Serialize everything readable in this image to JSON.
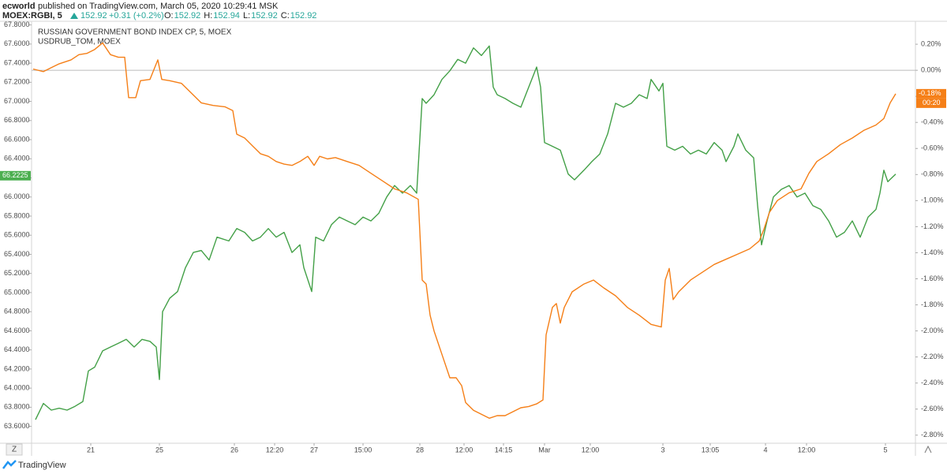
{
  "chart_data": {
    "type": "line",
    "header": {
      "author": "ecworld",
      "published": "published on TradingView.com, March 05, 2020 10:29:41 MSK",
      "symbol": "MOEX:RGBI, 5",
      "price": "152.92",
      "change": "+0.31 (+0.2%)",
      "ohlc": [
        {
          "label": "O:",
          "value": "152.92"
        },
        {
          "label": "H:",
          "value": "152.94"
        },
        {
          "label": "L:",
          "value": "152.92"
        },
        {
          "label": "C:",
          "value": "152.92"
        }
      ]
    },
    "legend_labels": [
      "RUSSIAN GOVERNMENT BOND INDEX CP, 5, MOEX",
      "USDRUB_TOM, MOEX"
    ],
    "branding": "TradingView",
    "zoom_button": "Z",
    "xlim": [
      0,
      112
    ],
    "xticks": [
      {
        "value": 7.5,
        "label": "21"
      },
      {
        "value": 16.2,
        "label": "25"
      },
      {
        "value": 25.7,
        "label": "26"
      },
      {
        "value": 30.8,
        "label": "12:20"
      },
      {
        "value": 35.8,
        "label": "27"
      },
      {
        "value": 42,
        "label": "15:00"
      },
      {
        "value": 49.2,
        "label": "28"
      },
      {
        "value": 54.8,
        "label": "12:00"
      },
      {
        "value": 59.8,
        "label": "14:15"
      },
      {
        "value": 65,
        "label": "Mar"
      },
      {
        "value": 70.8,
        "label": "12:00"
      },
      {
        "value": 80,
        "label": "3"
      },
      {
        "value": 86,
        "label": "13:05"
      },
      {
        "value": 93,
        "label": "4"
      },
      {
        "value": 98.2,
        "label": "12:00"
      },
      {
        "value": 108.2,
        "label": "5"
      }
    ],
    "ylim": [
      63.44,
      67.83
    ],
    "yticks": [
      {
        "value": 63.6,
        "label": "63.6000"
      },
      {
        "value": 63.8,
        "label": "63.8000"
      },
      {
        "value": 64.0,
        "label": "64.0000"
      },
      {
        "value": 64.2,
        "label": "64.2000"
      },
      {
        "value": 64.4,
        "label": "64.4000"
      },
      {
        "value": 64.6,
        "label": "64.6000"
      },
      {
        "value": 64.8,
        "label": "64.8000"
      },
      {
        "value": 65.0,
        "label": "65.0000"
      },
      {
        "value": 65.2,
        "label": "65.2000"
      },
      {
        "value": 65.4,
        "label": "65.4000"
      },
      {
        "value": 65.6,
        "label": "65.6000"
      },
      {
        "value": 65.8,
        "label": "65.8000"
      },
      {
        "value": 66.0,
        "label": "66.0000"
      },
      {
        "value": 66.2,
        "label": "66.2000"
      },
      {
        "value": 66.4,
        "label": "66.4000"
      },
      {
        "value": 66.6,
        "label": "66.6000"
      },
      {
        "value": 66.8,
        "label": "66.8000"
      },
      {
        "value": 67.0,
        "label": "67.0000"
      },
      {
        "value": 67.2,
        "label": "67.2000"
      },
      {
        "value": 67.4,
        "label": "67.4000"
      },
      {
        "value": 67.6,
        "label": "67.6000"
      },
      {
        "value": 67.8,
        "label": "67.8000"
      }
    ],
    "y2lim": [
      -2.85,
      0.37
    ],
    "y2ticks": [
      {
        "value": 0.2,
        "label": "0.20%"
      },
      {
        "value": 0,
        "label": "0.00%"
      },
      {
        "value": -0.2,
        "label": "-0.20%"
      },
      {
        "value": -0.4,
        "label": "-0.40%"
      },
      {
        "value": -0.6,
        "label": "-0.60%"
      },
      {
        "value": -0.8,
        "label": "-0.80%"
      },
      {
        "value": -1.0,
        "label": "-1.00%"
      },
      {
        "value": -1.2,
        "label": "-1.20%"
      },
      {
        "value": -1.4,
        "label": "-1.40%"
      },
      {
        "value": -1.6,
        "label": "-1.60%"
      },
      {
        "value": -1.8,
        "label": "-1.80%"
      },
      {
        "value": -2.0,
        "label": "-2.00%"
      },
      {
        "value": -2.2,
        "label": "-2.20%"
      },
      {
        "value": -2.4,
        "label": "-2.40%"
      },
      {
        "value": -2.6,
        "label": "-2.60%"
      },
      {
        "value": -2.8,
        "label": "-2.80%"
      }
    ],
    "y2_reference_line": 0,
    "price_tags": [
      {
        "value": 66.2225,
        "label": "66.2225",
        "color": "#4caf50",
        "axis": "y"
      },
      {
        "value": -0.18,
        "label": "-0.18%",
        "color": "#f57f17",
        "axis": "y2",
        "sublabel": "00:20"
      }
    ],
    "series": [
      {
        "name": "USDRUB_TOM, MOEX",
        "color": "#43a047",
        "axis": "y",
        "x": [
          0.5,
          1.5,
          2.5,
          3.5,
          4.5,
          5.5,
          6.5,
          7.2,
          8,
          9,
          10,
          11,
          12,
          13,
          14,
          15,
          15.8,
          16.2,
          16.6,
          17.5,
          18.5,
          19.5,
          20.5,
          21.5,
          22.5,
          23.5,
          25,
          26,
          27,
          28,
          29,
          30,
          31,
          32,
          33,
          34,
          34.5,
          35.5,
          36,
          37,
          38,
          39,
          40,
          41,
          42,
          43,
          44,
          45,
          46,
          47,
          48,
          48.8,
          49.5,
          50,
          51,
          52,
          53,
          54,
          55,
          56,
          57,
          58,
          58.5,
          59,
          60,
          61,
          62,
          63,
          64,
          64.5,
          65,
          66,
          67,
          68,
          68.8,
          70,
          71,
          72,
          73,
          74,
          75,
          76,
          77,
          78,
          78.5,
          79.5,
          80,
          80.5,
          81.5,
          82.5,
          83.5,
          84.5,
          85.5,
          86.5,
          87.5,
          88,
          89,
          89.5,
          90.5,
          91.5,
          92,
          92.5,
          93.2,
          94,
          95,
          96,
          97,
          98,
          99,
          100,
          101,
          102,
          103,
          104,
          105,
          106,
          107,
          107.5,
          108,
          108.5,
          109,
          109.5
        ],
        "values": [
          63.67,
          63.84,
          63.77,
          63.79,
          63.77,
          63.81,
          63.86,
          64.18,
          64.22,
          64.39,
          64.43,
          64.47,
          64.51,
          64.43,
          64.51,
          64.49,
          64.43,
          64.09,
          64.8,
          64.94,
          65.01,
          65.26,
          65.42,
          65.44,
          65.34,
          65.58,
          65.54,
          65.67,
          65.63,
          65.54,
          65.58,
          65.67,
          65.58,
          65.63,
          65.42,
          65.5,
          65.26,
          65.01,
          65.58,
          65.54,
          65.71,
          65.79,
          65.75,
          65.71,
          65.79,
          65.75,
          65.83,
          66.0,
          66.12,
          66.04,
          66.12,
          66.04,
          67.03,
          66.98,
          67.07,
          67.23,
          67.32,
          67.44,
          67.4,
          67.56,
          67.48,
          67.58,
          67.15,
          67.07,
          67.03,
          66.98,
          66.94,
          67.15,
          67.36,
          67.15,
          66.57,
          66.53,
          66.49,
          66.24,
          66.18,
          66.28,
          66.37,
          66.45,
          66.66,
          66.98,
          66.94,
          66.98,
          67.07,
          67.03,
          67.23,
          67.11,
          67.19,
          66.53,
          66.49,
          66.53,
          66.45,
          66.49,
          66.45,
          66.57,
          66.49,
          66.37,
          66.53,
          66.66,
          66.49,
          66.41,
          65.91,
          65.5,
          65.75,
          66.0,
          66.08,
          66.12,
          66.0,
          66.04,
          65.91,
          65.87,
          65.75,
          65.58,
          65.63,
          65.75,
          65.58,
          65.79,
          65.87,
          66.04,
          66.28,
          66.16,
          66.2,
          66.24
        ]
      },
      {
        "name": "RUSSIAN GOVERNMENT BOND INDEX CP, 5, MOEX",
        "color": "#f57f17",
        "axis": "y2",
        "x": [
          0.2,
          1.5,
          2.5,
          3.5,
          5,
          6,
          7,
          8,
          9,
          10,
          11,
          11.8,
          12.3,
          13.2,
          13.8,
          15,
          16,
          16.5,
          17.5,
          19,
          20.5,
          21.5,
          23,
          24.5,
          25.5,
          26,
          27,
          28,
          29,
          30,
          31,
          32,
          33,
          34,
          35,
          35.8,
          36.5,
          37.5,
          38.5,
          40,
          41.5,
          43,
          44.5,
          46,
          47.5,
          49,
          49.5,
          50,
          50.5,
          51,
          52,
          53,
          53.8,
          54.5,
          55,
          56,
          57,
          58,
          59,
          60,
          61,
          62,
          63,
          64,
          64.8,
          65.2,
          66,
          66.5,
          67,
          67.5,
          68.5,
          70,
          71.2,
          72.5,
          74,
          75.5,
          77,
          78.5,
          79.8,
          80.3,
          80.8,
          81.3,
          82,
          83.5,
          85,
          86.5,
          88,
          89.5,
          91,
          92.2,
          92.8,
          93.5,
          94.5,
          96,
          97.5,
          98.5,
          99.5,
          101,
          102.5,
          104,
          105.5,
          107,
          108,
          108.8,
          109.5
        ],
        "values": [
          0.01,
          -0.01,
          0.02,
          0.05,
          0.08,
          0.12,
          0.13,
          0.16,
          0.21,
          0.12,
          0.1,
          0.1,
          -0.21,
          -0.21,
          -0.08,
          -0.07,
          0.08,
          -0.07,
          -0.08,
          -0.1,
          -0.19,
          -0.25,
          -0.27,
          -0.28,
          -0.31,
          -0.49,
          -0.52,
          -0.58,
          -0.64,
          -0.66,
          -0.7,
          -0.72,
          -0.73,
          -0.7,
          -0.66,
          -0.73,
          -0.66,
          -0.68,
          -0.67,
          -0.7,
          -0.73,
          -0.79,
          -0.85,
          -0.91,
          -0.94,
          -0.99,
          -1.61,
          -1.64,
          -1.88,
          -2.0,
          -2.18,
          -2.36,
          -2.36,
          -2.42,
          -2.55,
          -2.61,
          -2.64,
          -2.67,
          -2.65,
          -2.65,
          -2.62,
          -2.59,
          -2.58,
          -2.56,
          -2.53,
          -2.03,
          -1.82,
          -1.79,
          -1.94,
          -1.82,
          -1.7,
          -1.64,
          -1.61,
          -1.67,
          -1.73,
          -1.82,
          -1.88,
          -1.95,
          -1.97,
          -1.61,
          -1.52,
          -1.76,
          -1.7,
          -1.61,
          -1.55,
          -1.49,
          -1.45,
          -1.41,
          -1.37,
          -1.31,
          -1.22,
          -1.09,
          -1.0,
          -0.94,
          -0.91,
          -0.79,
          -0.7,
          -0.64,
          -0.57,
          -0.52,
          -0.46,
          -0.42,
          -0.37,
          -0.25,
          -0.18
        ]
      }
    ]
  }
}
